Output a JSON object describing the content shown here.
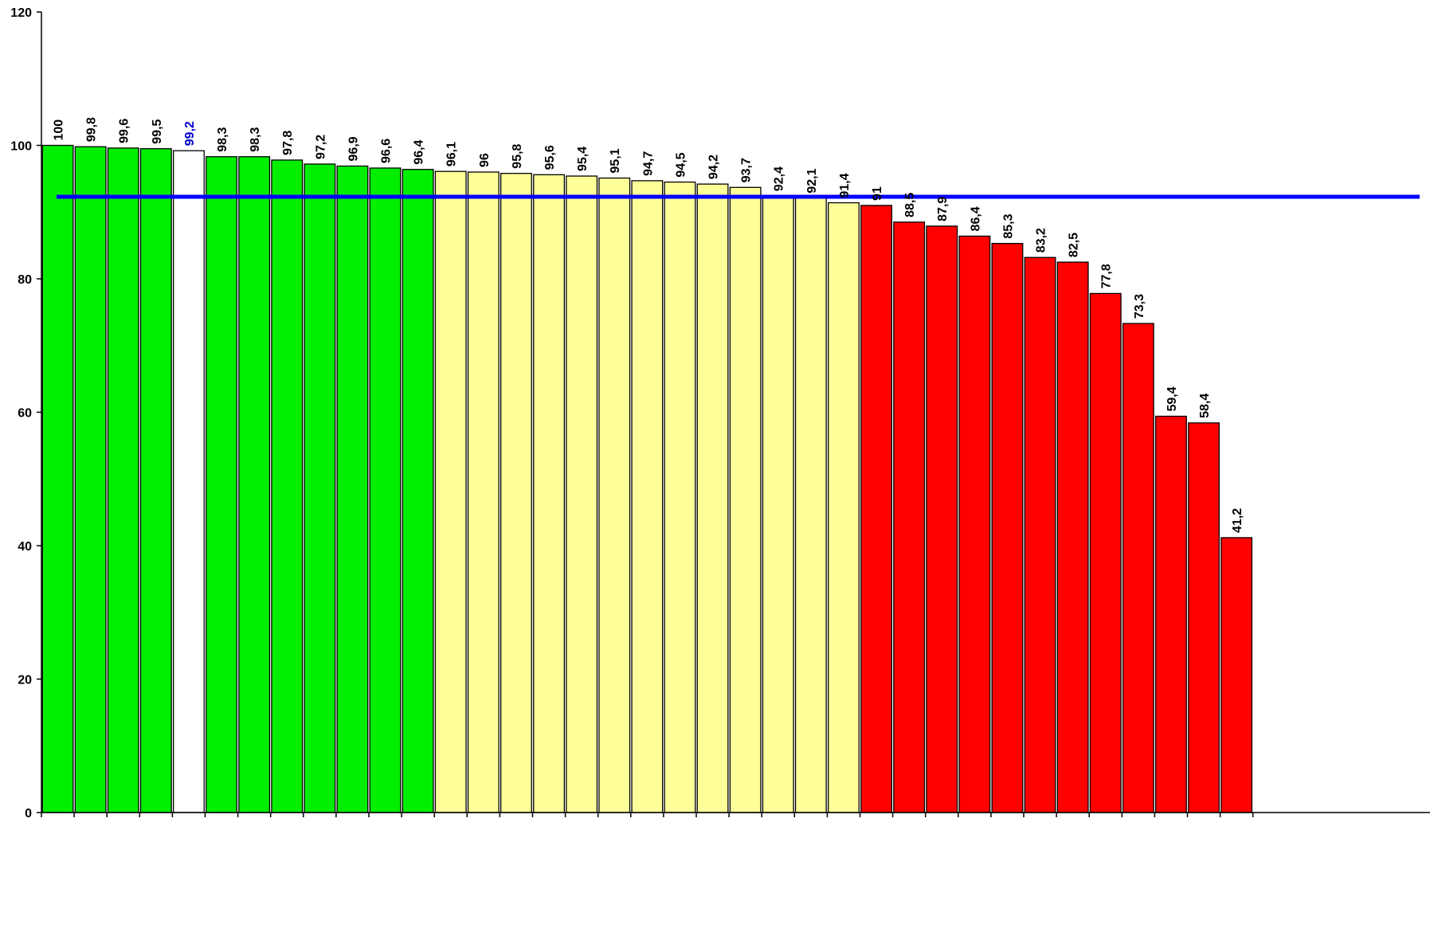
{
  "chart_data": {
    "type": "bar",
    "title": "",
    "xlabel": "",
    "ylabel": "",
    "ylim": [
      0,
      120
    ],
    "yticks": [
      0,
      20,
      40,
      60,
      80,
      100,
      120
    ],
    "ytick_labels": [
      "0",
      "20",
      "40",
      "60",
      "80",
      "100",
      "120"
    ],
    "grid": false,
    "legend": "none",
    "values": [
      100,
      99.8,
      99.6,
      99.5,
      99.2,
      98.3,
      98.3,
      97.8,
      97.2,
      96.9,
      96.6,
      96.4,
      96.1,
      96,
      95.8,
      95.6,
      95.4,
      95.1,
      94.7,
      94.5,
      94.2,
      93.7,
      92.4,
      92.1,
      91.4,
      91,
      88.5,
      87.9,
      86.4,
      85.3,
      83.2,
      82.5,
      77.8,
      73.3,
      59.4,
      58.4,
      41.2
    ],
    "value_labels": [
      "100",
      "99,8",
      "99,6",
      "99,5",
      "99,2",
      "98,3",
      "98,3",
      "97,8",
      "97,2",
      "96,9",
      "96,6",
      "96,4",
      "96,1",
      "96",
      "95,8",
      "95,6",
      "95,4",
      "95,1",
      "94,7",
      "94,5",
      "94,2",
      "93,7",
      "92,4",
      "92,1",
      "91,4",
      "91",
      "88,5",
      "87,9",
      "86,4",
      "85,3",
      "83,2",
      "82,5",
      "77,8",
      "73,3",
      "59,4",
      "58,4",
      "41,2"
    ],
    "bar_groups": [
      "green",
      "green",
      "green",
      "green",
      "highlight",
      "green",
      "green",
      "green",
      "green",
      "green",
      "green",
      "green",
      "yellow",
      "yellow",
      "yellow",
      "yellow",
      "yellow",
      "yellow",
      "yellow",
      "yellow",
      "yellow",
      "yellow",
      "yellow",
      "yellow",
      "yellow",
      "red",
      "red",
      "red",
      "red",
      "red",
      "red",
      "red",
      "red",
      "red",
      "red",
      "red",
      "red"
    ],
    "reference_line": 92.3,
    "colors": {
      "green": "#00ee00",
      "yellow": "#ffff99",
      "red": "#ff0000",
      "highlight": "#ffffff",
      "reference_line": "#0000ff",
      "highlight_label": "#0000cc",
      "label": "#000000"
    }
  }
}
